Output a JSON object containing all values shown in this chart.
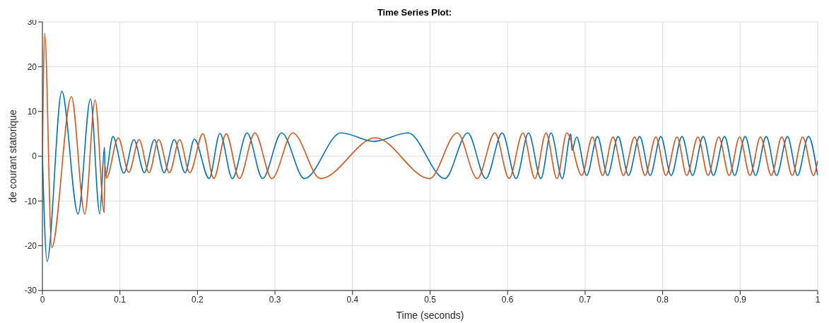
{
  "chart_data": {
    "type": "line",
    "title": "Time Series Plot:",
    "xlabel": "Time (seconds)",
    "ylabel": "de courant statorique",
    "xlim": [
      0,
      1
    ],
    "xticks": [
      0,
      0.1,
      0.2,
      0.3,
      0.4,
      0.5,
      0.6,
      0.7,
      0.8,
      0.9,
      1
    ],
    "ylim": [
      -30,
      30
    ],
    "yticks": [
      -30,
      -20,
      -10,
      0,
      10,
      20,
      30
    ],
    "grid": true,
    "series": [
      {
        "color": "#0072bd",
        "x": [
          0,
          0.006,
          0.025,
          0.046,
          0.062,
          0.074,
          0.08,
          0.081,
          0.091,
          0.105,
          0.118,
          0.1315,
          0.1444,
          0.157,
          0.17,
          0.184,
          0.196,
          0.215,
          0.229,
          0.245,
          0.264,
          0.284,
          0.3085,
          0.338,
          0.385,
          0.428,
          0.4715,
          0.519,
          0.5486,
          0.572,
          0.593,
          0.611,
          0.627,
          0.643,
          0.656,
          0.6705,
          0.6816,
          0.683,
          0.689,
          0.702,
          0.716,
          0.729,
          0.7426,
          0.756,
          0.7704,
          0.7839,
          0.7976,
          0.811,
          0.825,
          0.8386,
          0.8523,
          0.8655,
          0.8798,
          0.893,
          0.9064,
          0.9199,
          0.9336,
          0.947,
          0.961,
          0.974,
          0.9881,
          1.0
        ],
        "values": [
          0,
          -23.5,
          14.5,
          -12.9,
          12.8,
          -12.9,
          2,
          -4.5,
          4.4,
          -3.8,
          3.7,
          -3.7,
          3.7,
          -3.7,
          3.7,
          -3.7,
          3.8,
          -5,
          5.1,
          -5,
          5.2,
          -5,
          5.2,
          -5,
          5.2,
          3.3,
          5.2,
          -5,
          5.2,
          -5,
          5.2,
          -5,
          5.2,
          -5,
          5.2,
          -5,
          5,
          1.3,
          4.3,
          -4.3,
          4.4,
          -4.3,
          4.4,
          -4.3,
          4.4,
          -4.3,
          4.4,
          -4.3,
          4.4,
          -4.3,
          4.4,
          -4.3,
          4.4,
          -4.3,
          4.4,
          -4.3,
          4.4,
          -4.3,
          4.4,
          -4.3,
          4.4,
          -4.3
        ]
      },
      {
        "color": "#d95319",
        "x": [
          0,
          0.003,
          0.012,
          0.0374,
          0.0547,
          0.068,
          0.0798,
          0.0805,
          0.0825,
          0.0978,
          0.1115,
          0.1247,
          0.1375,
          0.15,
          0.1638,
          0.177,
          0.19,
          0.207,
          0.221,
          0.237,
          0.254,
          0.274,
          0.296,
          0.3229,
          0.3587,
          0.4296,
          0.4993,
          0.535,
          0.561,
          0.5836,
          0.602,
          0.6197,
          0.6353,
          0.6496,
          0.6637,
          0.6765,
          0.6957,
          0.7094,
          0.7226,
          0.736,
          0.7495,
          0.7638,
          0.7773,
          0.7913,
          0.8042,
          0.8186,
          0.8311,
          0.8455,
          0.8586,
          0.8724,
          0.8858,
          0.8993,
          0.9127,
          0.9262,
          0.9402,
          0.9537,
          0.9671,
          0.9806,
          0.9946,
          1.0
        ],
        "values": [
          0,
          27.5,
          -20.4,
          13.3,
          -12.9,
          12.6,
          -12.6,
          -1.9,
          -4.9,
          4.1,
          -3.6,
          3.7,
          -3.7,
          3.7,
          -3.7,
          3.7,
          -3.7,
          5,
          -5,
          5,
          -5,
          5.2,
          -5,
          5.2,
          -5,
          4.1,
          -5,
          5.2,
          -5,
          5.2,
          -5,
          5.2,
          -5,
          5.2,
          -5,
          5.2,
          -4.3,
          4.3,
          -4.3,
          4.3,
          -4.3,
          4.3,
          -4.3,
          4.3,
          -4.3,
          4.3,
          -4.3,
          4.3,
          -4.3,
          4.3,
          -4.3,
          4.3,
          -4.3,
          4.3,
          -4.3,
          4.3,
          -4.3,
          4.3,
          -4.3,
          -1
        ]
      }
    ]
  }
}
